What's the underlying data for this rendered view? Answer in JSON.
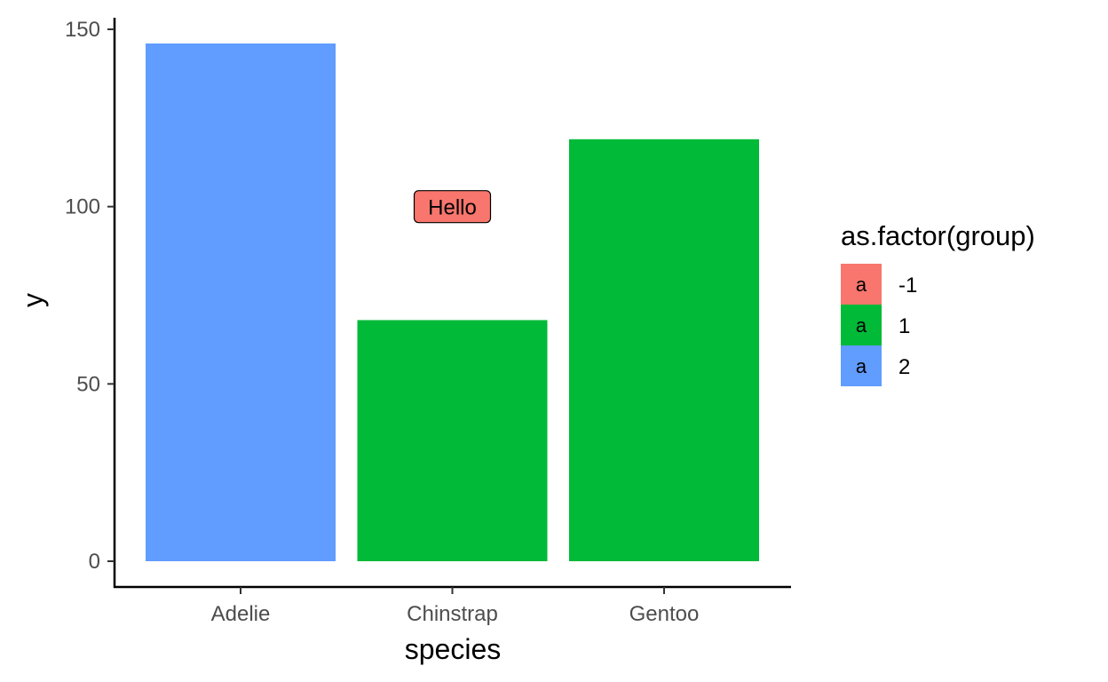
{
  "chart_data": {
    "type": "bar",
    "categories": [
      "Adelie",
      "Chinstrap",
      "Gentoo"
    ],
    "values": [
      146,
      68,
      119
    ],
    "groups": [
      "2",
      "1",
      "1"
    ],
    "xlabel": "species",
    "ylabel": "y",
    "ylim": [
      0,
      150
    ],
    "yticks": [
      "0",
      "50",
      "100",
      "150"
    ],
    "grid": false,
    "legend": {
      "title": "as.factor(group)",
      "position": "right",
      "key_glyph": "a",
      "entries": [
        {
          "label": "-1",
          "color": "#F8766D"
        },
        {
          "label": "1",
          "color": "#00BA38"
        },
        {
          "label": "2",
          "color": "#619CFF"
        }
      ]
    },
    "annotations": [
      {
        "text": "Hello",
        "x": "Chinstrap",
        "y": 100,
        "group": "-1"
      }
    ]
  }
}
